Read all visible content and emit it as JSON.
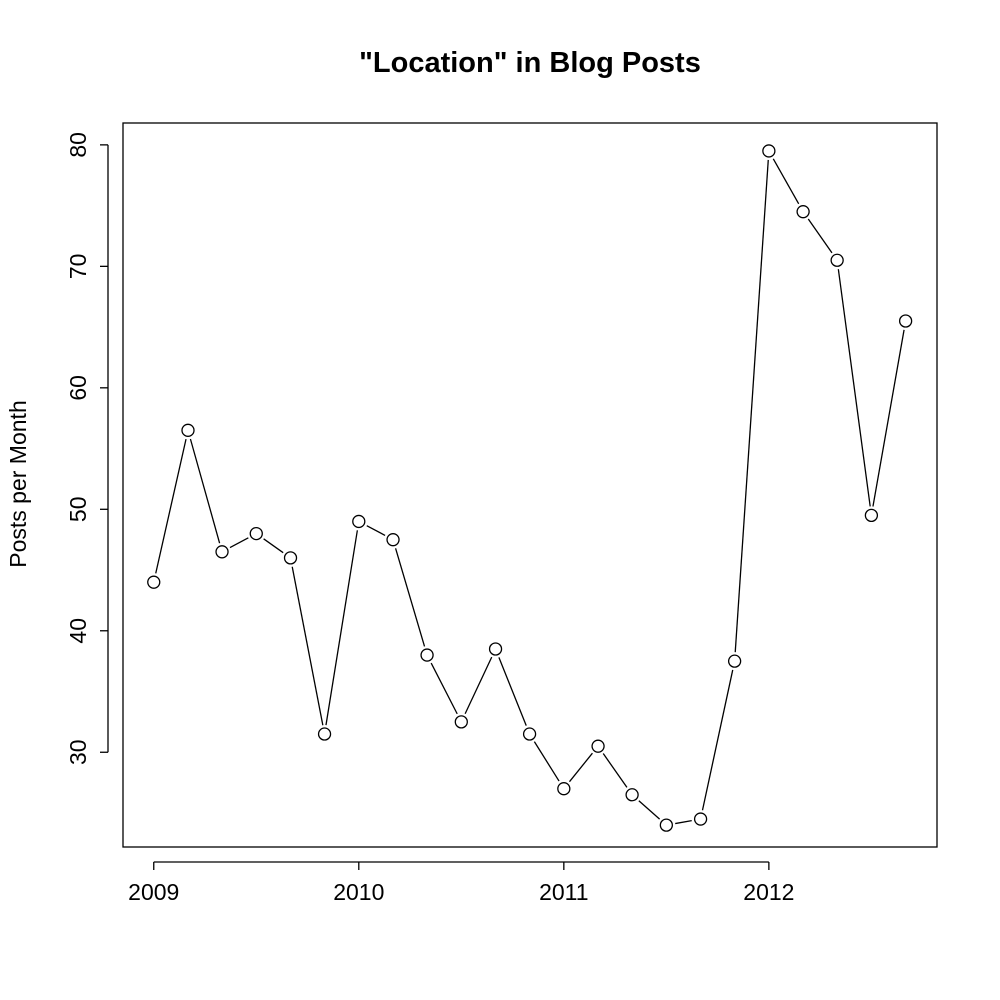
{
  "chart_data": {
    "type": "line",
    "title": "\"Location\" in Blog Posts",
    "xlabel": "",
    "ylabel": "Posts per Month",
    "x_ticks": [
      2009,
      2010,
      2011,
      2012
    ],
    "y_ticks": [
      30,
      40,
      50,
      60,
      70,
      80
    ],
    "xlim": [
      2008.85,
      2012.82
    ],
    "ylim": [
      22.2,
      81.8
    ],
    "grid": false,
    "legend": "none",
    "marker": "open-circle",
    "color": "#000000",
    "x": [
      2009.0,
      2009.167,
      2009.333,
      2009.5,
      2009.667,
      2009.833,
      2010.0,
      2010.167,
      2010.333,
      2010.5,
      2010.667,
      2010.833,
      2011.0,
      2011.167,
      2011.333,
      2011.5,
      2011.667,
      2011.833,
      2012.0,
      2012.167,
      2012.333,
      2012.5,
      2012.667
    ],
    "values": [
      44,
      56.5,
      46.5,
      48,
      46,
      31.5,
      49,
      47.5,
      38,
      32.5,
      38.5,
      31.5,
      27,
      30.5,
      26.5,
      24,
      24.5,
      37.5,
      79.5,
      74.5,
      70.5,
      49.5,
      65.5
    ]
  }
}
